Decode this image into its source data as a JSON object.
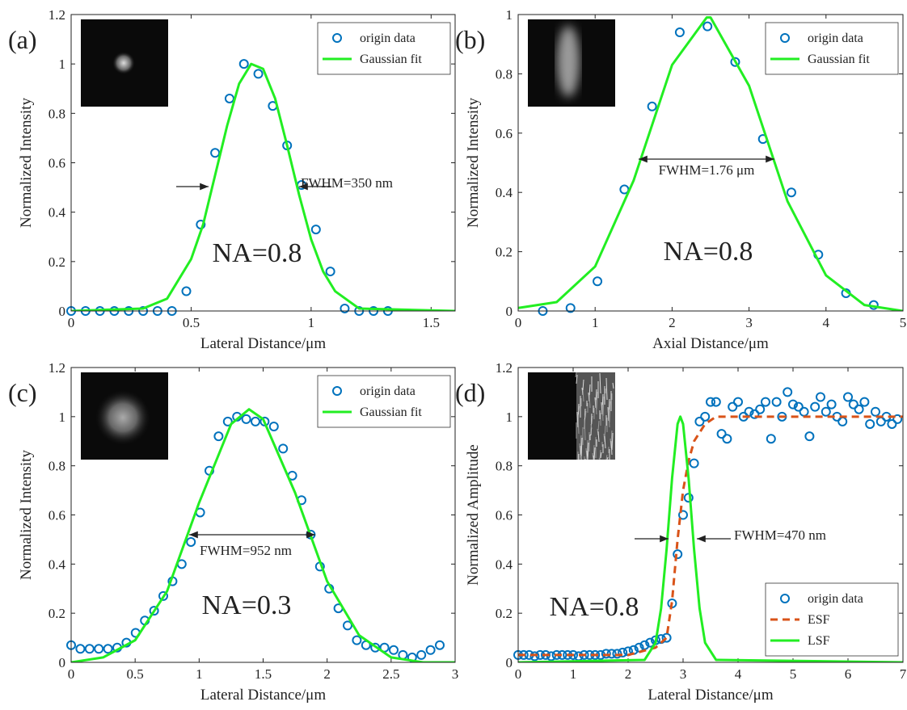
{
  "chart_data": [
    {
      "type": "scatter",
      "label": "(a)",
      "xlabel": "Lateral Distance/μm",
      "ylabel": "Normalized Intensity",
      "xlim": [
        0,
        1.6
      ],
      "xticks": [
        0,
        0.5,
        1,
        1.5
      ],
      "ylim": [
        0,
        1.2
      ],
      "yticks": [
        0,
        0.2,
        0.4,
        0.6,
        0.8,
        1,
        1.2
      ],
      "legend": "top-right",
      "annotations": [
        "FWHM=350 nm",
        "NA=0.8"
      ],
      "series": [
        {
          "name": "origin data",
          "color": "#0072bd",
          "style": "marker",
          "x": [
            0,
            0.06,
            0.12,
            0.18,
            0.24,
            0.3,
            0.36,
            0.42,
            0.48,
            0.54,
            0.6,
            0.66,
            0.72,
            0.78,
            0.84,
            0.9,
            0.96,
            1.02,
            1.08,
            1.14,
            1.2,
            1.26,
            1.32
          ],
          "values": [
            0,
            0,
            0,
            0,
            0,
            0,
            0,
            0,
            0.08,
            0.35,
            0.64,
            0.86,
            1.0,
            0.96,
            0.83,
            0.67,
            0.51,
            0.33,
            0.16,
            0.01,
            0,
            0,
            0
          ]
        },
        {
          "name": "Gaussian fit",
          "color": "#22ee22",
          "style": "solid",
          "x": [
            0,
            0.3,
            0.4,
            0.5,
            0.55,
            0.6,
            0.65,
            0.7,
            0.75,
            0.8,
            0.85,
            0.9,
            0.95,
            1.0,
            1.05,
            1.1,
            1.2,
            1.6
          ],
          "values": [
            0,
            0.01,
            0.05,
            0.21,
            0.35,
            0.55,
            0.75,
            0.92,
            1.0,
            0.98,
            0.86,
            0.67,
            0.47,
            0.29,
            0.16,
            0.08,
            0.01,
            0
          ]
        }
      ]
    },
    {
      "type": "scatter",
      "label": "(b)",
      "xlabel": "Axial Distance/μm",
      "ylabel": "Normalized Intensity",
      "xlim": [
        0,
        5
      ],
      "xticks": [
        0,
        1,
        2,
        3,
        4,
        5
      ],
      "ylim": [
        0,
        1
      ],
      "yticks": [
        0,
        0.2,
        0.4,
        0.6,
        0.8,
        1
      ],
      "legend": "top-right",
      "annotations": [
        "FWHM=1.76 μm",
        "NA=0.8"
      ],
      "series": [
        {
          "name": "origin data",
          "color": "#0072bd",
          "style": "marker",
          "x": [
            0.32,
            0.68,
            1.03,
            1.38,
            1.74,
            2.1,
            2.46,
            2.82,
            3.18,
            3.55,
            3.9,
            4.26,
            4.62
          ],
          "values": [
            0.0,
            0.01,
            0.1,
            0.41,
            0.69,
            0.94,
            0.96,
            0.84,
            0.58,
            0.4,
            0.19,
            0.06,
            0.02
          ]
        },
        {
          "name": "Gaussian fit",
          "color": "#22ee22",
          "style": "solid",
          "x": [
            0,
            0.5,
            1,
            1.5,
            2,
            2.45,
            2.5,
            3,
            3.5,
            4,
            4.5,
            5
          ],
          "values": [
            0.01,
            0.03,
            0.15,
            0.44,
            0.83,
            0.99,
            0.99,
            0.76,
            0.37,
            0.12,
            0.02,
            0
          ]
        }
      ]
    },
    {
      "type": "scatter",
      "label": "(c)",
      "xlabel": "Lateral Distance/μm",
      "ylabel": "Normalized Intensity",
      "xlim": [
        0,
        3
      ],
      "xticks": [
        0,
        0.5,
        1,
        1.5,
        2,
        2.5,
        3
      ],
      "ylim": [
        0,
        1.2
      ],
      "yticks": [
        0,
        0.2,
        0.4,
        0.6,
        0.8,
        1,
        1.2
      ],
      "legend": "top-right",
      "annotations": [
        "FWHM=952 nm",
        "NA=0.3"
      ],
      "series": [
        {
          "name": "origin data",
          "color": "#0072bd",
          "style": "marker",
          "x": [
            0,
            0.072,
            0.144,
            0.216,
            0.288,
            0.36,
            0.432,
            0.504,
            0.576,
            0.648,
            0.72,
            0.792,
            0.864,
            0.936,
            1.008,
            1.08,
            1.152,
            1.224,
            1.296,
            1.368,
            1.44,
            1.512,
            1.584,
            1.656,
            1.728,
            1.8,
            1.872,
            1.944,
            2.016,
            2.088,
            2.16,
            2.232,
            2.304,
            2.376,
            2.448,
            2.52,
            2.592,
            2.664,
            2.736,
            2.808,
            2.88
          ],
          "values": [
            0.07,
            0.055,
            0.055,
            0.055,
            0.055,
            0.06,
            0.08,
            0.12,
            0.17,
            0.21,
            0.27,
            0.33,
            0.4,
            0.49,
            0.61,
            0.78,
            0.92,
            0.98,
            1.0,
            0.99,
            0.98,
            0.98,
            0.96,
            0.87,
            0.76,
            0.66,
            0.52,
            0.39,
            0.3,
            0.22,
            0.15,
            0.09,
            0.07,
            0.06,
            0.06,
            0.05,
            0.03,
            0.02,
            0.03,
            0.05,
            0.07
          ]
        },
        {
          "name": "Gaussian fit",
          "color": "#22ee22",
          "style": "solid",
          "x": [
            0,
            0.25,
            0.5,
            0.75,
            1,
            1.25,
            1.39,
            1.5,
            1.75,
            2,
            2.25,
            2.5,
            2.75,
            3
          ],
          "values": [
            0,
            0.02,
            0.09,
            0.29,
            0.65,
            0.97,
            1.03,
            0.99,
            0.69,
            0.33,
            0.11,
            0.02,
            0,
            0
          ]
        }
      ]
    },
    {
      "type": "scatter",
      "label": "(d)",
      "xlabel": "Lateral Distance/μm",
      "ylabel": "Normalized Amplitude",
      "xlim": [
        0,
        7
      ],
      "xticks": [
        0,
        1,
        2,
        3,
        4,
        5,
        6,
        7
      ],
      "ylim": [
        0,
        1.2
      ],
      "yticks": [
        0,
        0.2,
        0.4,
        0.6,
        0.8,
        1,
        1.2
      ],
      "legend": "bottom-right",
      "annotations": [
        "FWHM=470 nm",
        "NA=0.8"
      ],
      "series": [
        {
          "name": "origin data",
          "color": "#0072bd",
          "style": "marker",
          "x": [
            0,
            0.1,
            0.2,
            0.3,
            0.4,
            0.5,
            0.6,
            0.7,
            0.8,
            0.9,
            1,
            1.1,
            1.2,
            1.3,
            1.4,
            1.5,
            1.6,
            1.7,
            1.8,
            1.9,
            2,
            2.1,
            2.2,
            2.3,
            2.4,
            2.5,
            2.6,
            2.7,
            2.8,
            2.9,
            3,
            3.1,
            3.2,
            3.3,
            3.4,
            3.5,
            3.6,
            3.7,
            3.8,
            3.9,
            4,
            4.1,
            4.2,
            4.3,
            4.4,
            4.5,
            4.6,
            4.7,
            4.8,
            4.9,
            5,
            5.1,
            5.2,
            5.3,
            5.4,
            5.5,
            5.6,
            5.7,
            5.8,
            5.9,
            6,
            6.1,
            6.2,
            6.3,
            6.4,
            6.5,
            6.6,
            6.7,
            6.8,
            6.9
          ],
          "values": [
            0.03,
            0.03,
            0.03,
            0.025,
            0.03,
            0.03,
            0.025,
            0.03,
            0.03,
            0.03,
            0.03,
            0.025,
            0.03,
            0.03,
            0.03,
            0.03,
            0.035,
            0.035,
            0.035,
            0.04,
            0.045,
            0.05,
            0.06,
            0.07,
            0.08,
            0.09,
            0.095,
            0.1,
            0.24,
            0.44,
            0.6,
            0.67,
            0.81,
            0.98,
            1.0,
            1.06,
            1.06,
            0.93,
            0.91,
            1.04,
            1.06,
            1.0,
            1.02,
            1.01,
            1.03,
            1.06,
            0.91,
            1.06,
            1.0,
            1.1,
            1.05,
            1.04,
            1.02,
            0.92,
            1.04,
            1.08,
            1.02,
            1.05,
            1.0,
            0.98,
            1.08,
            1.05,
            1.03,
            1.06,
            0.97,
            1.02,
            0.98,
            1.0,
            0.97,
            0.99
          ]
        },
        {
          "name": "ESF",
          "color": "#d95319",
          "style": "dashed",
          "x": [
            0,
            2,
            2.5,
            2.7,
            2.8,
            2.9,
            3.0,
            3.1,
            3.2,
            3.4,
            3.6,
            4,
            7
          ],
          "values": [
            0.03,
            0.03,
            0.06,
            0.1,
            0.25,
            0.5,
            0.7,
            0.82,
            0.9,
            0.97,
            1.0,
            1.0,
            1.0
          ]
        },
        {
          "name": "LSF",
          "color": "#22ee22",
          "style": "solid",
          "x": [
            0,
            2.3,
            2.5,
            2.6,
            2.7,
            2.8,
            2.9,
            2.95,
            3.0,
            3.1,
            3.2,
            3.3,
            3.4,
            3.6,
            7
          ],
          "values": [
            0,
            0.01,
            0.08,
            0.22,
            0.46,
            0.75,
            0.97,
            1.0,
            0.97,
            0.75,
            0.46,
            0.22,
            0.08,
            0.01,
            0
          ]
        }
      ]
    }
  ]
}
